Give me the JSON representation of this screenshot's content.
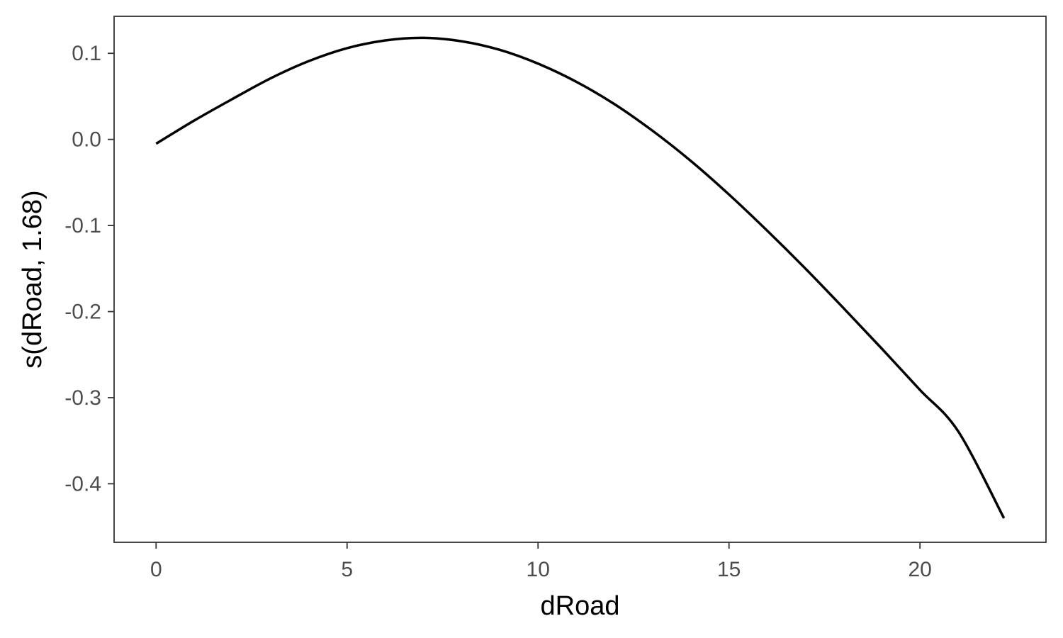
{
  "chart_data": {
    "type": "line",
    "title": "",
    "xlabel": "dRoad",
    "ylabel": "s(dRoad, 1.68)",
    "xlim": [
      -1.1,
      23.3
    ],
    "ylim": [
      -0.468,
      0.143
    ],
    "xticks": [
      0,
      5,
      10,
      15,
      20
    ],
    "xtick_labels": [
      "0",
      "5",
      "10",
      "15",
      "20"
    ],
    "yticks": [
      -0.4,
      -0.3,
      -0.2,
      -0.1,
      0.0,
      0.1
    ],
    "ytick_labels": [
      "-0.4",
      "-0.3",
      "-0.2",
      "-0.1",
      "0.0",
      "0.1"
    ],
    "grid": false,
    "line_color": "#000000",
    "series": [
      {
        "x": [
          0,
          1,
          2,
          3,
          4,
          5,
          6,
          7,
          8,
          9,
          10,
          11,
          12,
          13,
          14,
          15,
          16,
          17,
          18,
          19,
          20,
          21,
          22.2
        ],
        "y": [
          -0.005,
          0.022,
          0.047,
          0.071,
          0.091,
          0.106,
          0.115,
          0.118,
          0.114,
          0.104,
          0.088,
          0.067,
          0.041,
          0.01,
          -0.025,
          -0.064,
          -0.106,
          -0.15,
          -0.196,
          -0.243,
          -0.291,
          -0.339,
          -0.44
        ]
      }
    ]
  }
}
